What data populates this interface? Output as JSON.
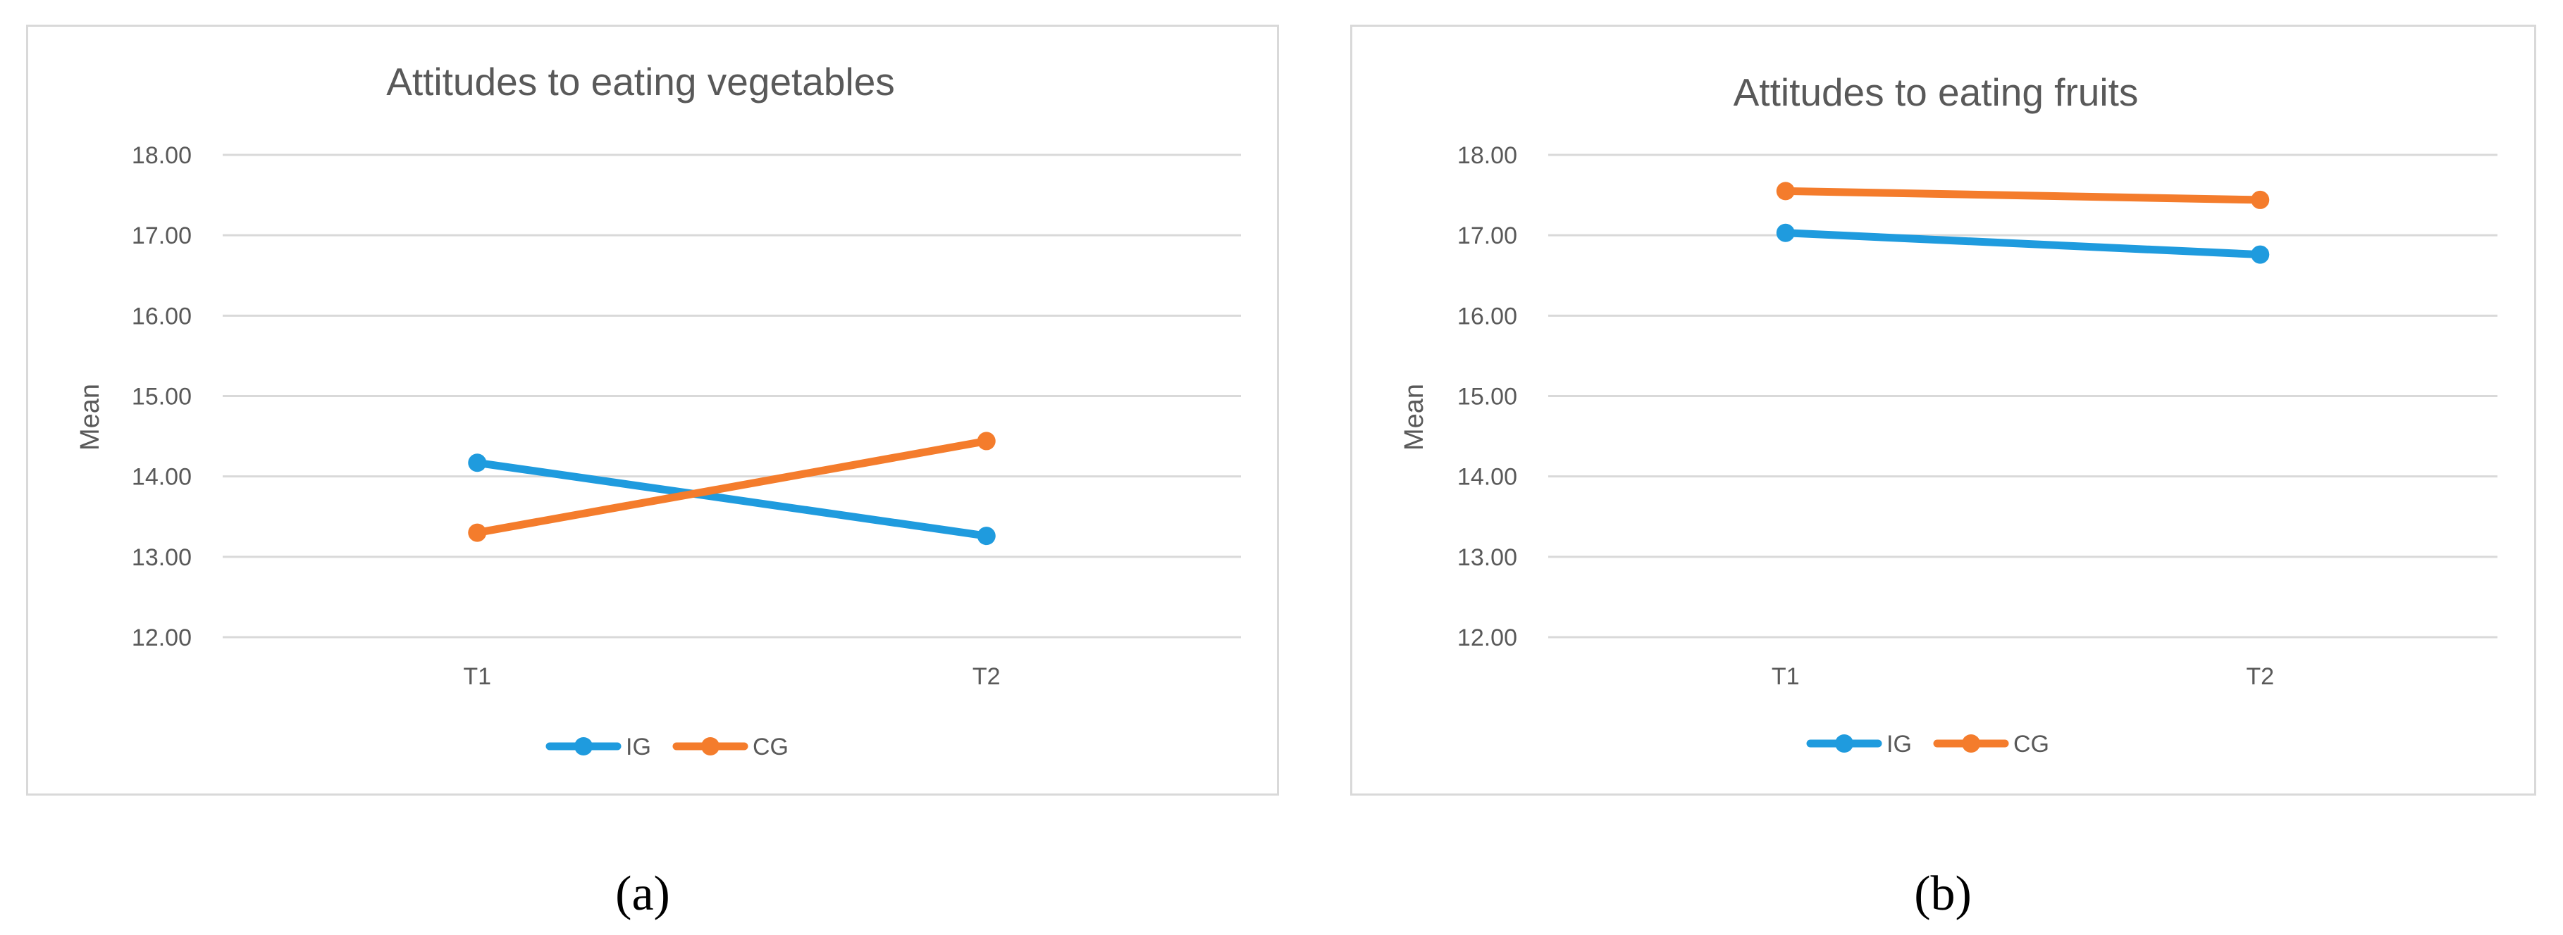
{
  "chart_data": [
    {
      "type": "line",
      "title": "Attitudes to eating vegetables",
      "xlabel": "",
      "ylabel": "Mean",
      "categories": [
        "T1",
        "T2"
      ],
      "yticks": [
        "12.00",
        "13.00",
        "14.00",
        "15.00",
        "16.00",
        "17.00",
        "18.00"
      ],
      "ylim": [
        12,
        18
      ],
      "grid": true,
      "legend": "bottom",
      "series": [
        {
          "name": "IG",
          "color": "#1f9bde",
          "values": [
            14.17,
            13.26
          ]
        },
        {
          "name": "CG",
          "color": "#f47c2c",
          "values": [
            13.3,
            14.44
          ]
        }
      ],
      "caption": "(a)"
    },
    {
      "type": "line",
      "title": "Attitudes to eating fruits",
      "xlabel": "",
      "ylabel": "Mean",
      "categories": [
        "T1",
        "T2"
      ],
      "yticks": [
        "12.00",
        "13.00",
        "14.00",
        "15.00",
        "16.00",
        "17.00",
        "18.00"
      ],
      "ylim": [
        12,
        18
      ],
      "grid": true,
      "legend": "bottom",
      "series": [
        {
          "name": "IG",
          "color": "#1f9bde",
          "values": [
            17.03,
            16.76
          ]
        },
        {
          "name": "CG",
          "color": "#f47c2c",
          "values": [
            17.55,
            17.44
          ]
        }
      ],
      "caption": "(b)"
    }
  ]
}
